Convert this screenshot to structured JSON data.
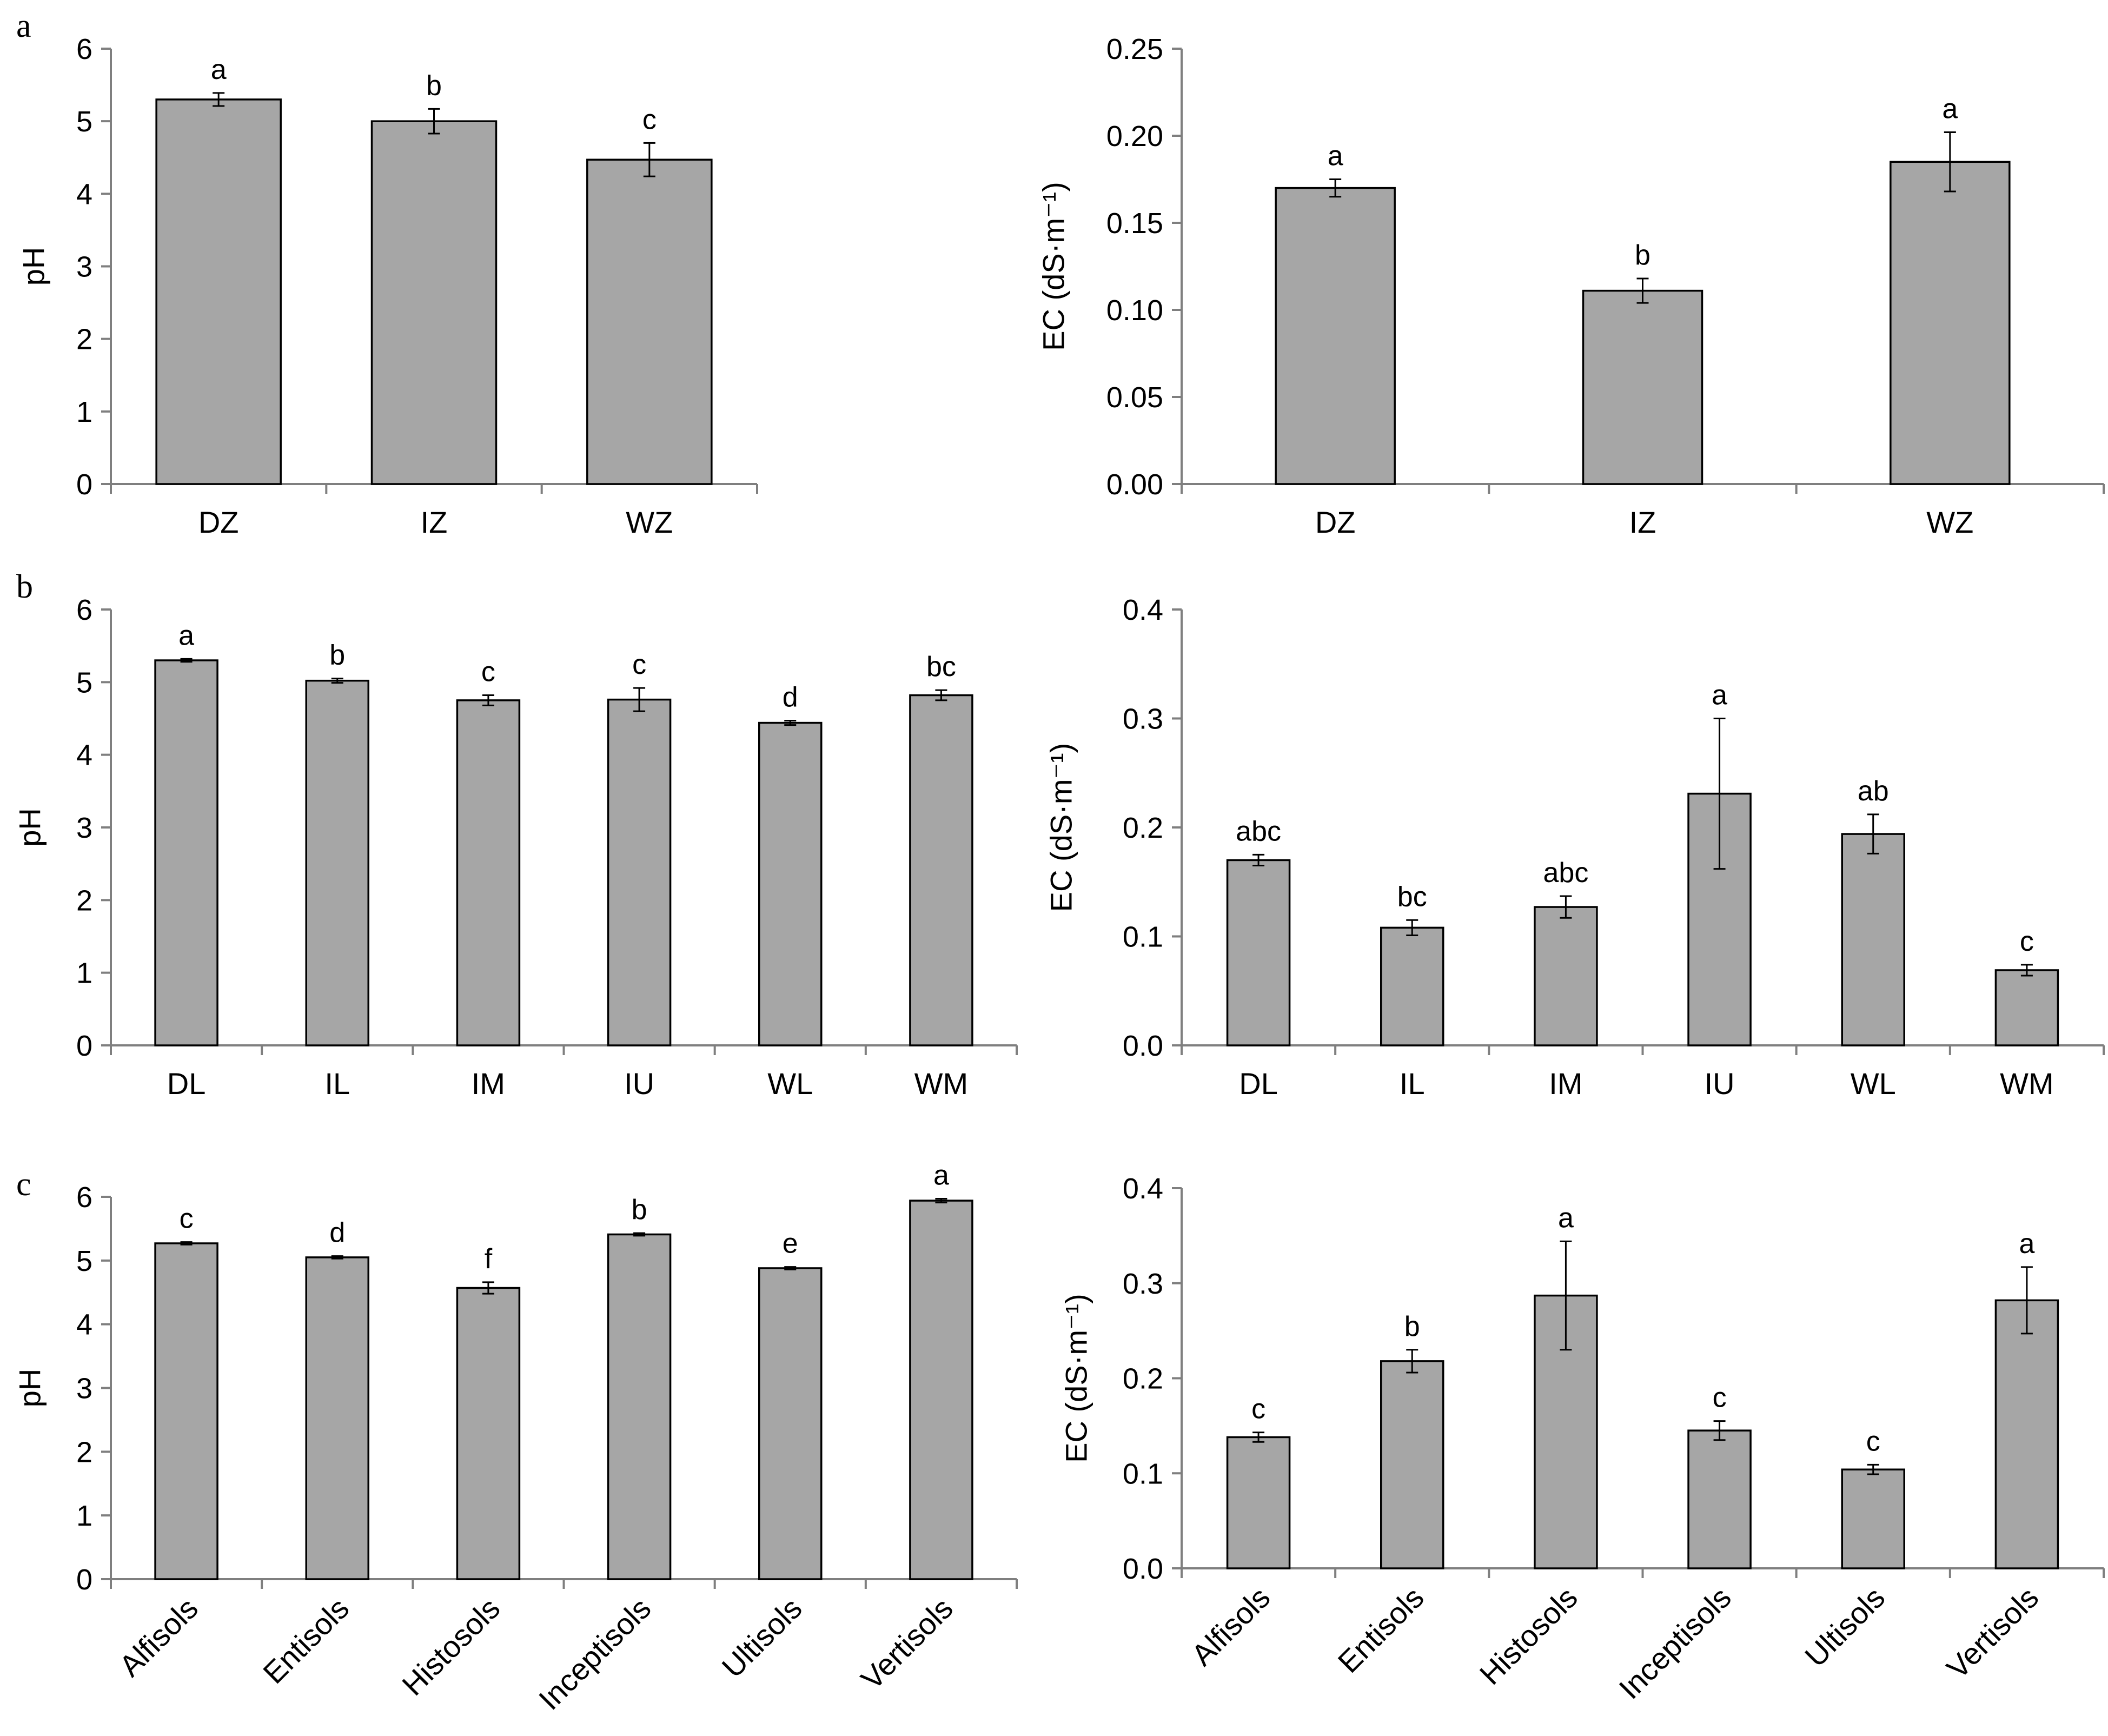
{
  "panel_labels": [
    "a",
    "b",
    "c"
  ],
  "colors": {
    "bar_fill": "#a6a6a6",
    "bar_stroke": "#000000",
    "axis": "#7f7f7f",
    "text": "#000000",
    "background": "#ffffff"
  },
  "chart_data": [
    {
      "id": "a-ph",
      "type": "bar",
      "panel": "a",
      "title": "",
      "xlabel": "",
      "ylabel": "pH",
      "categories": [
        "DZ",
        "IZ",
        "WZ"
      ],
      "values": [
        5.3,
        5.0,
        4.47
      ],
      "errors": [
        0.09,
        0.17,
        0.23
      ],
      "significance": [
        "a",
        "b",
        "c"
      ],
      "ylim": [
        0,
        6
      ],
      "yticks": [
        "0",
        "1",
        "2",
        "3",
        "4",
        "5",
        "6"
      ],
      "grid": false
    },
    {
      "id": "a-ec",
      "type": "bar",
      "panel": "a",
      "title": "",
      "xlabel": "",
      "ylabel": "EC (dS·m⁻¹)",
      "categories": [
        "DZ",
        "IZ",
        "WZ"
      ],
      "values": [
        0.17,
        0.111,
        0.185
      ],
      "errors": [
        0.005,
        0.007,
        0.017
      ],
      "significance": [
        "a",
        "b",
        "a"
      ],
      "ylim": [
        0,
        0.25
      ],
      "yticks": [
        "0.00",
        "0.05",
        "0.10",
        "0.15",
        "0.20",
        "0.25"
      ],
      "grid": false
    },
    {
      "id": "b-ph",
      "type": "bar",
      "panel": "b",
      "title": "",
      "xlabel": "",
      "ylabel": "pH",
      "categories": [
        "DL",
        "IL",
        "IM",
        "IU",
        "WL",
        "WM"
      ],
      "values": [
        5.3,
        5.02,
        4.75,
        4.76,
        4.44,
        4.82
      ],
      "errors": [
        0.02,
        0.03,
        0.07,
        0.16,
        0.03,
        0.07
      ],
      "significance": [
        "a",
        "b",
        "c",
        "c",
        "d",
        "bc"
      ],
      "ylim": [
        0,
        6
      ],
      "yticks": [
        "0",
        "1",
        "2",
        "3",
        "4",
        "5",
        "6"
      ],
      "grid": false
    },
    {
      "id": "b-ec",
      "type": "bar",
      "panel": "b",
      "title": "",
      "xlabel": "",
      "ylabel": "EC (dS·m⁻¹)",
      "categories": [
        "DL",
        "IL",
        "IM",
        "IU",
        "WL",
        "WM"
      ],
      "values": [
        0.17,
        0.108,
        0.127,
        0.231,
        0.194,
        0.069
      ],
      "errors": [
        0.005,
        0.007,
        0.01,
        0.069,
        0.018,
        0.005
      ],
      "significance": [
        "abc",
        "bc",
        "abc",
        "a",
        "ab",
        "c"
      ],
      "ylim": [
        0,
        0.4
      ],
      "yticks": [
        "0.0",
        "0.1",
        "0.2",
        "0.3",
        "0.4"
      ],
      "grid": false
    },
    {
      "id": "c-ph",
      "type": "bar",
      "panel": "c",
      "title": "",
      "xlabel": "",
      "ylabel": "pH",
      "categories": [
        "Alfisols",
        "Entisols",
        "Histosols",
        "Inceptisols",
        "Ultisols",
        "Vertisols"
      ],
      "values": [
        5.27,
        5.05,
        4.57,
        5.41,
        4.88,
        5.94
      ],
      "errors": [
        0.02,
        0.02,
        0.09,
        0.02,
        0.02,
        0.03
      ],
      "significance": [
        "c",
        "d",
        "f",
        "b",
        "e",
        "a"
      ],
      "ylim": [
        0,
        6
      ],
      "yticks": [
        "0",
        "1",
        "2",
        "3",
        "4",
        "5",
        "6"
      ],
      "grid": false,
      "rotate_xticks": -45
    },
    {
      "id": "c-ec",
      "type": "bar",
      "panel": "c",
      "title": "",
      "xlabel": "",
      "ylabel": "EC (dS·m⁻¹)",
      "categories": [
        "Alfisols",
        "Entisols",
        "Histosols",
        "Inceptisols",
        "Ultisols",
        "Vertisols"
      ],
      "values": [
        0.138,
        0.218,
        0.287,
        0.145,
        0.104,
        0.282
      ],
      "errors": [
        0.005,
        0.012,
        0.057,
        0.01,
        0.005,
        0.035
      ],
      "significance": [
        "c",
        "b",
        "a",
        "c",
        "c",
        "a"
      ],
      "ylim": [
        0,
        0.4
      ],
      "yticks": [
        "0.0",
        "0.1",
        "0.2",
        "0.3",
        "0.4"
      ],
      "grid": false,
      "rotate_xticks": -45
    }
  ]
}
